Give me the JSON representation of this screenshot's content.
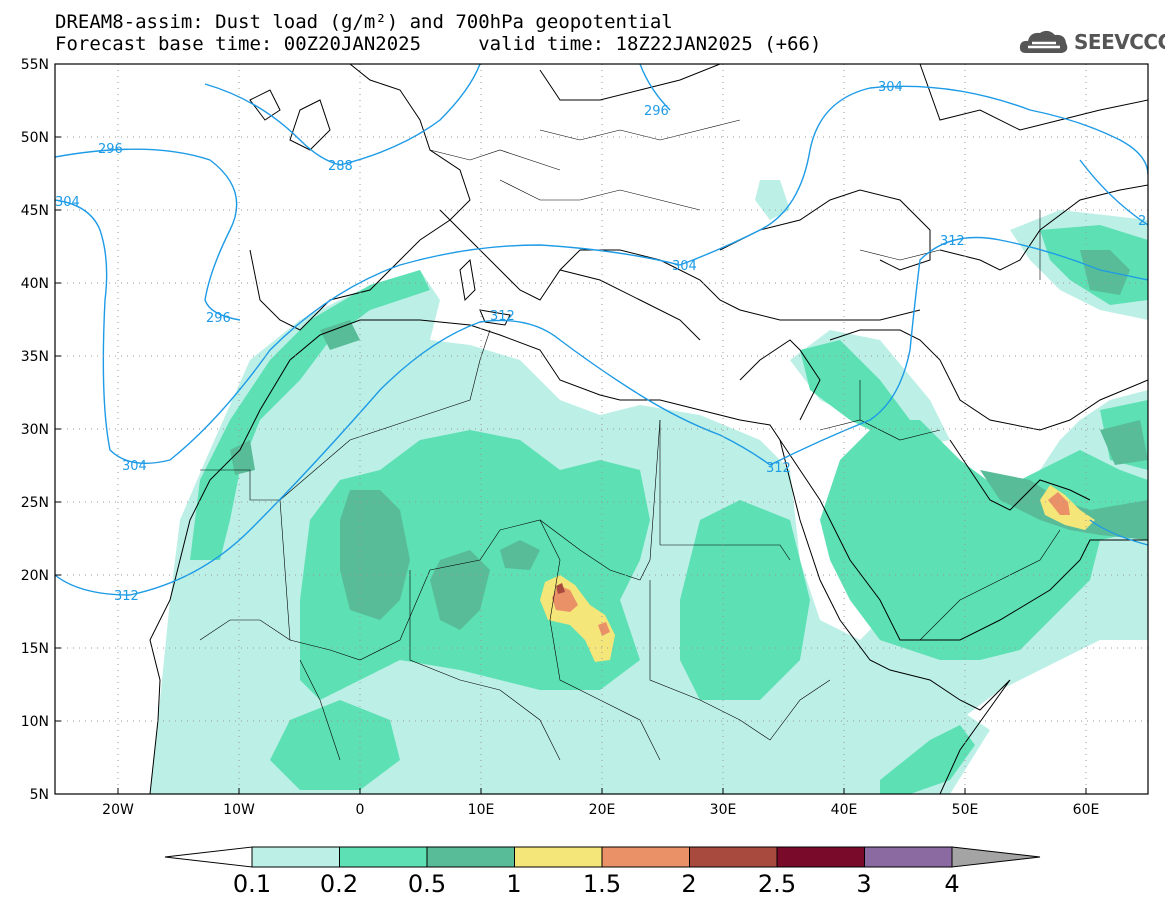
{
  "header": {
    "title_line1": "DREAM8-assim: Dust load (g/m²) and 700hPa geopotential",
    "title_line2": "Forecast base time: 00Z20JAN2025     valid time: 18Z22JAN2025 (+66)"
  },
  "logo": {
    "text": "SEEVCCC",
    "icon": "cloud-icon",
    "color": "#555555"
  },
  "map": {
    "lon_labels": [
      "20W",
      "10W",
      "0",
      "10E",
      "20E",
      "30E",
      "40E",
      "50E",
      "60E"
    ],
    "lat_labels": [
      "55N",
      "50N",
      "45N",
      "40N",
      "35N",
      "30N",
      "25N",
      "20N",
      "15N",
      "10N",
      "5N"
    ],
    "contour_labels": [
      "296",
      "288",
      "296",
      "304",
      "296",
      "304",
      "312",
      "304",
      "312",
      "312",
      "312",
      "304",
      "2"
    ],
    "contour_color": "#1e9be6"
  },
  "colorbar": {
    "labels": [
      "0.1",
      "0.2",
      "0.5",
      "1",
      "1.5",
      "2",
      "2.5",
      "3",
      "4"
    ],
    "colors": [
      "#ffffff",
      "#bcf0e6",
      "#5ce0b4",
      "#58bc98",
      "#f5e67a",
      "#ea9168",
      "#a84a3e",
      "#7a0a2a",
      "#8a6aa0",
      "#a4a4a4"
    ]
  }
}
